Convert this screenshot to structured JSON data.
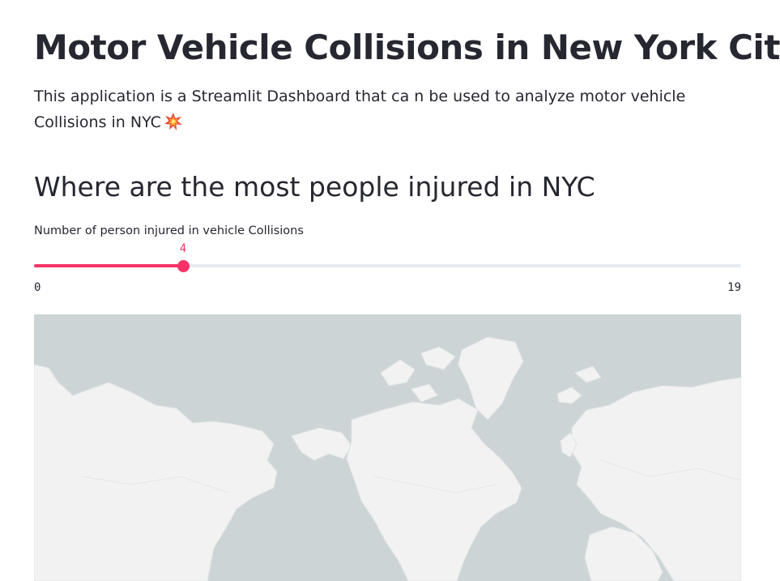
{
  "page": {
    "title": "Motor Vehicle Collisions in New York City",
    "description": "This application is a Streamlit Dashboard that ca n be used to analyze motor vehicle Collisions in NYC",
    "description_emoji": "collision-emoji",
    "section_heading": "Where are the most people injured in NYC"
  },
  "slider": {
    "label": "Number of person injured in vehicle Collisions",
    "min": 0,
    "max": 19,
    "value": 4,
    "min_label": "0",
    "max_label": "19",
    "value_label": "4",
    "accent_color": "#f63366"
  },
  "map": {
    "style": "light basemap",
    "water_color": "#cdd4d6",
    "land_color": "#f2f2f2"
  }
}
